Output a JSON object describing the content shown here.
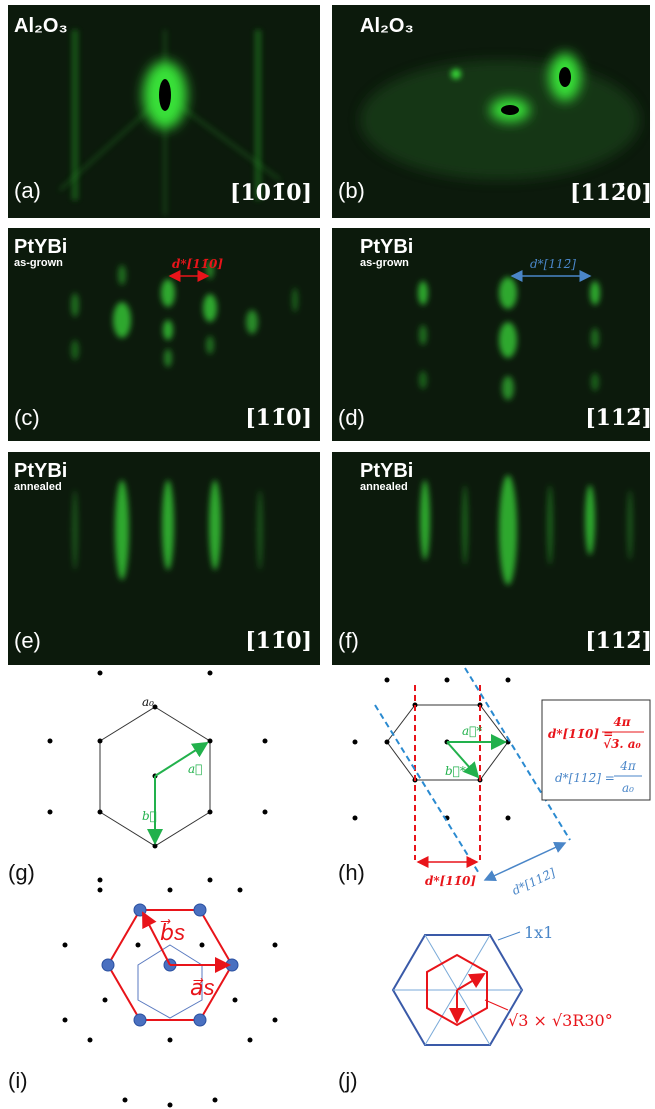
{
  "panels": [
    {
      "label": "(a)",
      "sample": "Al₂O₃",
      "direction": "[101̄0]"
    },
    {
      "label": "(b)",
      "sample": "Al₂O₃",
      "direction": "[112̄0]"
    },
    {
      "label": "(c)",
      "sample": "PtYBi",
      "condition": "as-grown",
      "direction": "[11̄0]",
      "annotation": "d*[11̄0]"
    },
    {
      "label": "(d)",
      "sample": "PtYBi",
      "condition": "as-grown",
      "direction": "[112̄]",
      "annotation": "d*[112̄]"
    },
    {
      "label": "(e)",
      "sample": "PtYBi",
      "condition": "annealed",
      "direction": "[11̄0]"
    },
    {
      "label": "(f)",
      "sample": "PtYBi",
      "condition": "annealed",
      "direction": "[112̄]"
    }
  ],
  "diagrams": {
    "g": {
      "label": "(g)",
      "lattice": "a₀",
      "a": "a⃗",
      "b": "b⃗"
    },
    "h": {
      "label": "(h)",
      "a": "a⃗*",
      "b": "b⃗*",
      "d110": "d*[11̄0]",
      "d112": "d*[112̄]",
      "formula1": {
        "lhs": "d*[11̄0] =",
        "numerator": "4π",
        "denominator": "√3. a₀"
      },
      "formula2": {
        "lhs": "d*[112̄] =",
        "numerator": "4π",
        "denominator": "a₀"
      }
    },
    "i": {
      "label": "(i)",
      "b": "b⃗s",
      "a": "a⃗s"
    },
    "j": {
      "label": "(j)",
      "large": "1x1",
      "small": "√3 × √3R30°"
    }
  }
}
